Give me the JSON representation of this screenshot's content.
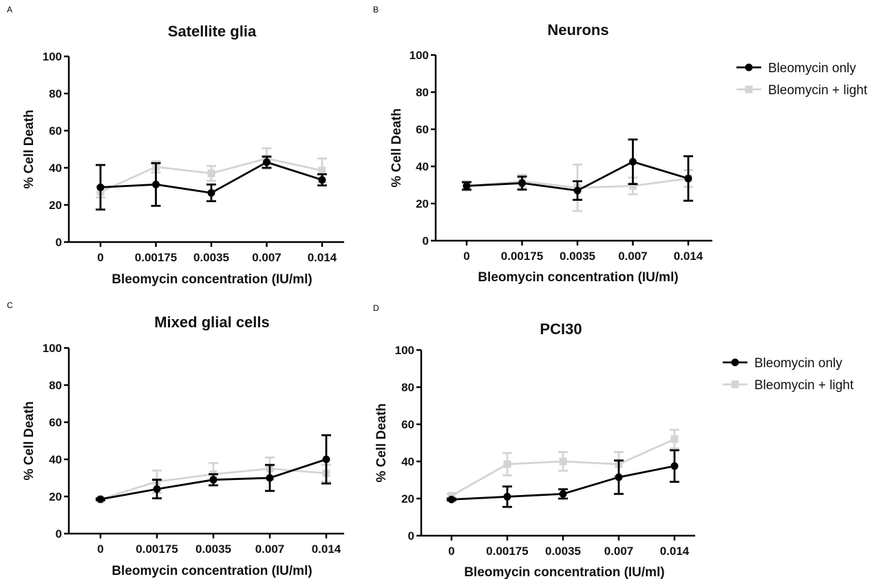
{
  "colors": {
    "bleomycin_only": "#000000",
    "bleomycin_light": "#d4d4d4"
  },
  "chart_data": [
    {
      "type": "line",
      "panel": "A",
      "title": "Satellite glia",
      "xlabel": "Bleomycin concentration (IU/ml)",
      "ylabel": "% Cell Death",
      "categories": [
        "0",
        "0.00175",
        "0.0035",
        "0.007",
        "0.014"
      ],
      "yticks": [
        "0",
        "20",
        "40",
        "60",
        "80",
        "100"
      ],
      "ylim": [
        0,
        100
      ],
      "grid": false,
      "legend": "none",
      "series": [
        {
          "name": "Bleomycin only",
          "marker": "circle",
          "values": [
            29.5,
            31,
            26.5,
            43,
            33.5
          ],
          "error": [
            12,
            11.5,
            4.5,
            3,
            3
          ]
        },
        {
          "name": "Bleomycin + light",
          "marker": "square",
          "values": [
            27,
            40.5,
            37,
            45,
            38.5
          ],
          "error": [
            3,
            3,
            4,
            5.5,
            6.5
          ]
        }
      ]
    },
    {
      "type": "line",
      "panel": "B",
      "title": "Neurons",
      "xlabel": "Bleomycin concentration (IU/ml)",
      "ylabel": "% Cell Death",
      "categories": [
        "0",
        "0.00175",
        "0.0035",
        "0.007",
        "0.014"
      ],
      "yticks": [
        "0",
        "20",
        "40",
        "60",
        "80",
        "100"
      ],
      "ylim": [
        0,
        100
      ],
      "grid": false,
      "legend": "right",
      "series": [
        {
          "name": "Bleomycin only",
          "marker": "circle",
          "values": [
            29.5,
            31,
            27,
            42.5,
            33.5
          ],
          "error": [
            2,
            3.5,
            5,
            12,
            12
          ]
        },
        {
          "name": "Bleomycin + light",
          "marker": "square",
          "values": [
            29.5,
            32,
            28.5,
            29.5,
            33.5
          ],
          "error": [
            2.5,
            3.5,
            12.5,
            4.5,
            4.5
          ]
        }
      ]
    },
    {
      "type": "line",
      "panel": "C",
      "title": "Mixed glial cells",
      "xlabel": "Bleomycin concentration (IU/ml)",
      "ylabel": "% Cell Death",
      "categories": [
        "0",
        "0.00175",
        "0.0035",
        "0.007",
        "0.014"
      ],
      "yticks": [
        "0",
        "20",
        "40",
        "60",
        "80",
        "100"
      ],
      "ylim": [
        0,
        100
      ],
      "grid": false,
      "legend": "none",
      "series": [
        {
          "name": "Bleomycin only",
          "marker": "circle",
          "values": [
            18.5,
            24,
            29,
            30,
            40
          ],
          "error": [
            0.5,
            5,
            3,
            7,
            13
          ]
        },
        {
          "name": "Bleomycin + light",
          "marker": "square",
          "values": [
            18.5,
            28,
            32,
            35,
            32.5
          ],
          "error": [
            0.5,
            6,
            6,
            6,
            4.5
          ]
        }
      ]
    },
    {
      "type": "line",
      "panel": "D",
      "title": "PCI30",
      "xlabel": "Bleomycin concentration (IU/ml)",
      "ylabel": "% Cell Death",
      "categories": [
        "0",
        "0.00175",
        "0.0035",
        "0.007",
        "0.014"
      ],
      "yticks": [
        "0",
        "20",
        "40",
        "60",
        "80",
        "100"
      ],
      "ylim": [
        0,
        100
      ],
      "grid": false,
      "legend": "right",
      "series": [
        {
          "name": "Bleomycin only",
          "marker": "circle",
          "values": [
            19.5,
            21,
            22.5,
            31.5,
            37.5
          ],
          "error": [
            0.5,
            5.5,
            2.5,
            9,
            8.5
          ]
        },
        {
          "name": "Bleomycin + light",
          "marker": "square",
          "values": [
            21.5,
            38.5,
            40,
            38.5,
            52
          ],
          "error": [
            1,
            6,
            5,
            6.5,
            5
          ]
        }
      ]
    }
  ]
}
